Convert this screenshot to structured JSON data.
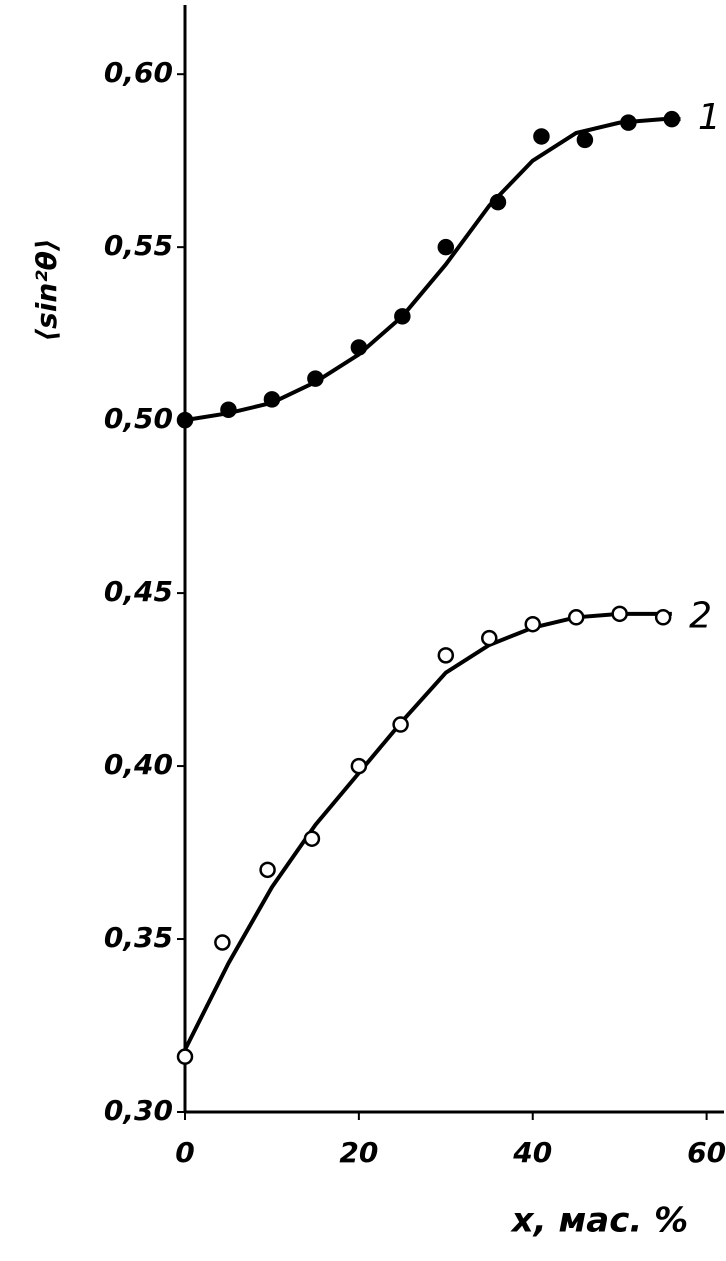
{
  "chart_data": {
    "type": "scatter",
    "y_label": "⟨sin²θ⟩",
    "x_label": "x, мас. %",
    "xlim": [
      0,
      62
    ],
    "ylim": [
      0.3,
      0.62
    ],
    "xticks": [
      0,
      20,
      40,
      60
    ],
    "yticks": [
      {
        "value": 0.3,
        "label": "0,30"
      },
      {
        "value": 0.35,
        "label": "0,35"
      },
      {
        "value": 0.4,
        "label": "0,40"
      },
      {
        "value": 0.45,
        "label": "0,45"
      },
      {
        "value": 0.5,
        "label": "0,50"
      },
      {
        "value": 0.55,
        "label": "0,55"
      },
      {
        "value": 0.6,
        "label": "0,60"
      }
    ],
    "series": [
      {
        "name": "1",
        "color": "#000000",
        "marker": "filled",
        "x": [
          0,
          5,
          10,
          15,
          20,
          25,
          30,
          36,
          41,
          46,
          51,
          56
        ],
        "values": [
          0.5,
          0.503,
          0.506,
          0.512,
          0.521,
          0.53,
          0.55,
          0.563,
          0.582,
          0.581,
          0.586,
          0.587
        ],
        "curve": {
          "x": [
            0,
            5,
            10,
            15,
            20,
            25,
            30,
            35,
            40,
            45,
            50,
            55,
            57
          ],
          "values": [
            0.5,
            0.502,
            0.505,
            0.511,
            0.519,
            0.53,
            0.545,
            0.562,
            0.575,
            0.583,
            0.586,
            0.587,
            0.587
          ]
        }
      },
      {
        "name": "2",
        "color": "#000000",
        "marker": "open",
        "x": [
          0,
          4.3,
          9.5,
          14.6,
          20,
          24.8,
          30,
          35,
          40,
          45,
          50,
          55
        ],
        "values": [
          0.316,
          0.349,
          0.37,
          0.379,
          0.4,
          0.412,
          0.432,
          0.437,
          0.441,
          0.443,
          0.444,
          0.443
        ],
        "curve": {
          "x": [
            0,
            5,
            10,
            15,
            20,
            25,
            30,
            35,
            40,
            45,
            50,
            56
          ],
          "values": [
            0.318,
            0.343,
            0.365,
            0.383,
            0.398,
            0.413,
            0.427,
            0.435,
            0.44,
            0.443,
            0.444,
            0.444
          ]
        }
      }
    ]
  }
}
